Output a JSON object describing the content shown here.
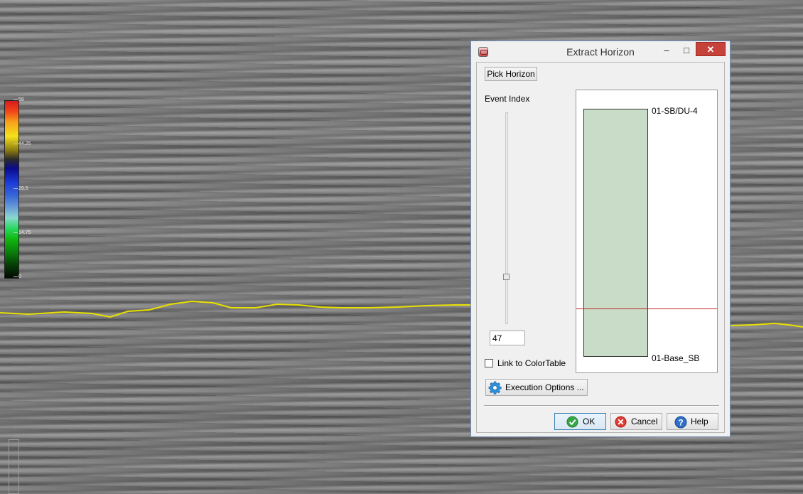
{
  "background": {
    "colorbar": {
      "ticks": [
        "58",
        "44.25",
        "29.5",
        "14.75",
        "0"
      ]
    },
    "horizon_line_color": "#e8e000"
  },
  "dialog": {
    "title": "Extract Horizon",
    "window_controls": {
      "minimize": "–",
      "maximize": "□",
      "close": "✕"
    },
    "pick_horizon_label": "Pick Horizon",
    "event_index_label": "Event Index",
    "event_index_value": "47",
    "link_colortable_label": "Link to ColorTable",
    "link_colortable_checked": false,
    "execution_options_label": "Execution Options ...",
    "horizon_panel": {
      "top_horizon": "01-SB/DU-4",
      "base_horizon": "01-Base_SB",
      "fill_color": "#c8dcc8",
      "marker_color": "#c02828"
    },
    "buttons": {
      "ok": "OK",
      "cancel": "Cancel",
      "help": "Help"
    },
    "icons": {
      "app": "app-icon",
      "execution": "gear-icon",
      "ok": "check-icon",
      "cancel": "cancel-icon",
      "help": "help-icon"
    }
  }
}
